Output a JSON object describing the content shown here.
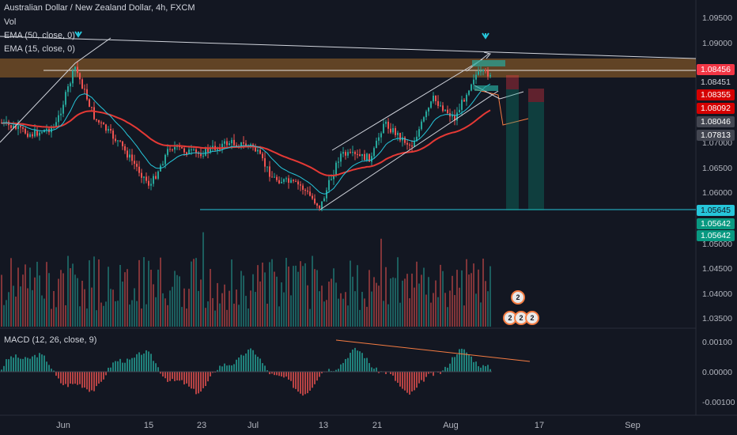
{
  "legend": {
    "title": "Australian Dollar / New Zealand Dollar, 4h, FXCM",
    "vol": "Vol",
    "ema50": "EMA (50, close, 0)",
    "ema15": "EMA (15, close, 0)",
    "macd": "MACD (12, 26, close, 9)"
  },
  "price_axis": [
    "1.09500",
    "1.09000",
    "1.07000",
    "1.06500",
    "1.06000",
    "1.05000",
    "1.04500",
    "1.04000",
    "1.03500"
  ],
  "price_tags": [
    {
      "text": "1.08456",
      "color": "#f23645"
    },
    {
      "text": "1.08451",
      "color": "#131722"
    },
    {
      "text": "1.08355",
      "color": "#d50000"
    },
    {
      "text": "1.08092",
      "color": "#d50000"
    },
    {
      "text": "1.08046",
      "color": "#434651"
    },
    {
      "text": "1.07813",
      "color": "#434651"
    },
    {
      "text": "1.05645",
      "color": "#26c6da"
    },
    {
      "text": "1.05642",
      "color": "#089981"
    },
    {
      "text": "1.05642",
      "color": "#089981"
    }
  ],
  "macd_axis": [
    "0.00100",
    "0.00000",
    "-0.00100"
  ],
  "time_axis": [
    "Jun",
    "15",
    "23",
    "Jul",
    "13",
    "21",
    "Aug",
    "17",
    "Sep"
  ],
  "badges": [
    "2",
    "2",
    "2",
    "2"
  ],
  "colors": {
    "up": "#26a69a",
    "down": "#ef5350",
    "ema50": "#e53935",
    "ema15": "#26c6da",
    "bg": "#131722"
  }
}
